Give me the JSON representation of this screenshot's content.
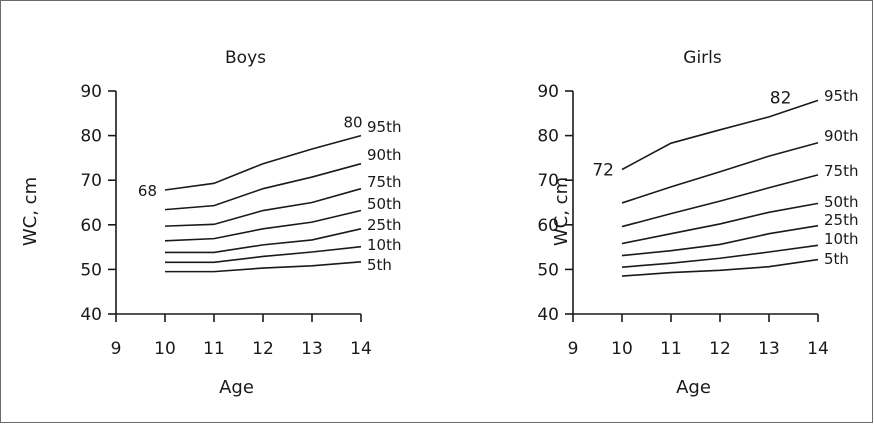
{
  "chart_data": [
    {
      "type": "line",
      "title": "Boys",
      "xlabel": "Age",
      "ylabel": "WC, cm",
      "x_ticks": [
        "9",
        "10",
        "11",
        "12",
        "13",
        "14"
      ],
      "y_ticks": [
        "40",
        "50",
        "60",
        "70",
        "80",
        "90"
      ],
      "xlim": [
        9,
        14
      ],
      "ylim": [
        40,
        90
      ],
      "grid": false,
      "x": [
        10,
        11,
        12,
        13,
        14
      ],
      "series": [
        {
          "name": "5th",
          "values": [
            49.5,
            49.5,
            50.3,
            50.8,
            51.7
          ]
        },
        {
          "name": "10th",
          "values": [
            51.6,
            51.6,
            52.9,
            53.9,
            55.1
          ]
        },
        {
          "name": "25th",
          "values": [
            53.8,
            53.8,
            55.5,
            56.6,
            59.1
          ]
        },
        {
          "name": "50th",
          "values": [
            56.4,
            56.9,
            59.1,
            60.6,
            63.2
          ]
        },
        {
          "name": "75th",
          "values": [
            59.7,
            60.1,
            63.2,
            65.0,
            68.1
          ]
        },
        {
          "name": "90th",
          "values": [
            63.4,
            64.3,
            68.1,
            70.7,
            73.7
          ]
        },
        {
          "name": "95th",
          "values": [
            67.8,
            69.3,
            73.7,
            77.0,
            80.0
          ]
        }
      ],
      "annotations": [
        {
          "text": "68",
          "x": 10,
          "y": 67.8,
          "position": "left"
        },
        {
          "text": "80",
          "x": 14,
          "y": 80.0,
          "position": "above"
        }
      ]
    },
    {
      "type": "line",
      "title": "Girls",
      "xlabel": "Age",
      "ylabel": "WC, cm",
      "x_ticks": [
        "9",
        "10",
        "11",
        "12",
        "13",
        "14"
      ],
      "y_ticks": [
        "40",
        "50",
        "60",
        "70",
        "80",
        "90"
      ],
      "xlim": [
        9,
        14
      ],
      "ylim": [
        40,
        90
      ],
      "grid": false,
      "x": [
        10,
        11,
        12,
        13,
        14
      ],
      "series": [
        {
          "name": "5th",
          "values": [
            48.5,
            49.3,
            49.8,
            50.6,
            52.2
          ]
        },
        {
          "name": "10th",
          "values": [
            50.5,
            51.4,
            52.5,
            53.9,
            55.4
          ]
        },
        {
          "name": "25th",
          "values": [
            53.1,
            54.2,
            55.6,
            58.0,
            59.8
          ]
        },
        {
          "name": "50th",
          "values": [
            55.8,
            58.0,
            60.2,
            62.8,
            64.8
          ]
        },
        {
          "name": "75th",
          "values": [
            59.6,
            62.5,
            65.3,
            68.3,
            71.2
          ]
        },
        {
          "name": "90th",
          "values": [
            64.9,
            68.5,
            71.9,
            75.4,
            78.4
          ]
        },
        {
          "name": "95th",
          "values": [
            72.4,
            78.3,
            81.3,
            84.2,
            87.9
          ]
        }
      ],
      "annotations": [
        {
          "text": "72",
          "x": 10,
          "y": 72.4,
          "position": "left"
        },
        {
          "text": "82",
          "x": 13.4,
          "y": 85.4,
          "position": "above"
        }
      ]
    }
  ]
}
